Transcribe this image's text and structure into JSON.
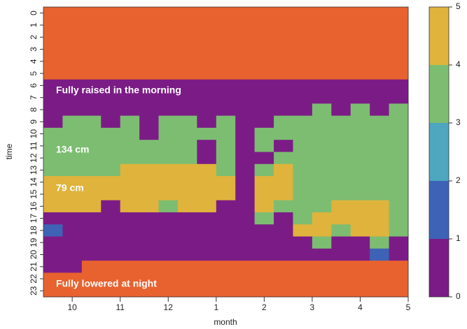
{
  "chart_data": {
    "type": "heatmap",
    "x_label": "month",
    "y_label": "time",
    "x": [
      0.2,
      0.6,
      1.0,
      1.4,
      1.8,
      2.2,
      2.6,
      3.0,
      3.4,
      3.8,
      4.2,
      4.6,
      5.0,
      5.4,
      5.8,
      6.2,
      6.6,
      7.0,
      7.4
    ],
    "xlim": [
      0,
      7.6
    ],
    "xticks": [
      {
        "value": 0.6,
        "label": "10"
      },
      {
        "value": 1.6,
        "label": "11"
      },
      {
        "value": 2.6,
        "label": "12"
      },
      {
        "value": 3.6,
        "label": "1"
      },
      {
        "value": 4.6,
        "label": "2"
      },
      {
        "value": 5.6,
        "label": "3"
      },
      {
        "value": 6.6,
        "label": "4"
      },
      {
        "value": 7.6,
        "label": "5"
      }
    ],
    "y": [
      0,
      1,
      2,
      3,
      4,
      5,
      6,
      7,
      8,
      9,
      10,
      11,
      12,
      13,
      14,
      15,
      16,
      17,
      18,
      19,
      20,
      21,
      22,
      23
    ],
    "ylim": [
      -0.5,
      23.5
    ],
    "yticks": [
      0,
      1,
      2,
      3,
      4,
      5,
      6,
      7,
      8,
      9,
      10,
      11,
      12,
      13,
      14,
      15,
      16,
      17,
      18,
      19,
      20,
      21,
      22,
      23
    ],
    "z": [
      [
        5,
        5,
        5,
        5,
        5,
        5,
        5,
        5,
        5,
        5,
        5,
        5,
        5,
        5,
        5,
        5,
        5,
        5,
        5
      ],
      [
        5,
        5,
        5,
        5,
        5,
        5,
        5,
        5,
        5,
        5,
        5,
        5,
        5,
        5,
        5,
        5,
        5,
        5,
        5
      ],
      [
        5,
        5,
        5,
        5,
        5,
        5,
        5,
        5,
        5,
        5,
        5,
        5,
        5,
        5,
        5,
        5,
        5,
        5,
        5
      ],
      [
        5,
        5,
        5,
        5,
        5,
        5,
        5,
        5,
        5,
        5,
        5,
        5,
        5,
        5,
        5,
        5,
        5,
        5,
        5
      ],
      [
        5,
        5,
        5,
        5,
        5,
        5,
        5,
        5,
        5,
        5,
        5,
        5,
        5,
        5,
        5,
        5,
        5,
        5,
        5
      ],
      [
        5,
        5,
        5,
        5,
        5,
        5,
        5,
        5,
        5,
        5,
        5,
        5,
        5,
        5,
        5,
        5,
        5,
        5,
        5
      ],
      [
        0,
        0,
        0,
        0,
        0,
        0,
        0,
        0,
        0,
        0,
        0,
        0,
        0,
        0,
        0,
        0,
        0,
        0,
        0
      ],
      [
        0,
        0,
        0,
        0,
        0,
        0,
        0,
        0,
        0,
        0,
        0,
        0,
        0,
        0,
        0,
        0,
        0,
        0,
        0
      ],
      [
        0,
        0,
        0,
        0,
        0,
        0,
        0,
        0,
        0,
        0,
        0,
        0,
        0,
        0,
        3,
        0,
        3,
        0,
        3
      ],
      [
        0,
        3,
        3,
        0,
        3,
        0,
        3,
        3,
        0,
        3,
        0,
        0,
        3,
        3,
        3,
        3,
        3,
        3,
        3
      ],
      [
        3,
        3,
        3,
        3,
        3,
        0,
        3,
        3,
        3,
        3,
        0,
        3,
        3,
        3,
        3,
        3,
        3,
        3,
        3
      ],
      [
        3,
        3,
        3,
        3,
        3,
        3,
        3,
        3,
        0,
        3,
        0,
        3,
        0,
        3,
        3,
        3,
        3,
        3,
        3
      ],
      [
        3,
        3,
        3,
        3,
        3,
        3,
        3,
        3,
        0,
        3,
        0,
        0,
        3,
        3,
        3,
        3,
        3,
        3,
        3
      ],
      [
        3,
        3,
        3,
        3,
        4,
        4,
        4,
        4,
        4,
        3,
        0,
        3,
        4,
        3,
        3,
        3,
        3,
        3,
        3
      ],
      [
        4,
        4,
        4,
        4,
        4,
        4,
        4,
        4,
        4,
        4,
        0,
        4,
        4,
        3,
        3,
        3,
        3,
        3,
        3
      ],
      [
        4,
        4,
        4,
        4,
        4,
        4,
        4,
        4,
        4,
        4,
        0,
        4,
        4,
        3,
        3,
        3,
        3,
        3,
        3
      ],
      [
        4,
        4,
        4,
        0,
        4,
        4,
        3,
        4,
        4,
        0,
        0,
        4,
        3,
        3,
        3,
        4,
        4,
        4,
        3
      ],
      [
        0,
        0,
        0,
        0,
        0,
        0,
        0,
        0,
        0,
        0,
        0,
        3,
        0,
        3,
        4,
        4,
        4,
        4,
        3
      ],
      [
        1,
        0,
        0,
        0,
        0,
        0,
        0,
        0,
        0,
        0,
        0,
        0,
        0,
        4,
        4,
        3,
        4,
        4,
        3
      ],
      [
        0,
        0,
        0,
        0,
        0,
        0,
        0,
        0,
        0,
        0,
        0,
        0,
        0,
        0,
        3,
        0,
        0,
        3,
        0
      ],
      [
        0,
        0,
        0,
        0,
        0,
        0,
        0,
        0,
        0,
        0,
        0,
        0,
        0,
        0,
        0,
        0,
        0,
        1,
        0
      ],
      [
        0,
        0,
        5,
        5,
        5,
        5,
        5,
        5,
        5,
        5,
        5,
        5,
        5,
        5,
        5,
        5,
        5,
        5,
        5
      ],
      [
        5,
        5,
        5,
        5,
        5,
        5,
        5,
        5,
        5,
        5,
        5,
        5,
        5,
        5,
        5,
        5,
        5,
        5,
        5
      ],
      [
        5,
        5,
        5,
        5,
        5,
        5,
        5,
        5,
        5,
        5,
        5,
        5,
        5,
        5,
        5,
        5,
        5,
        5,
        5
      ]
    ],
    "colors": [
      "#7b1c86",
      "#3e63b6",
      "#4ea6bf",
      "#7dbd71",
      "#e0b33c",
      "#e8622f"
    ],
    "zlim": [
      0,
      5
    ],
    "zticks": [
      0,
      1,
      2,
      3,
      4,
      5
    ],
    "annotations": [
      "Fully raised in the morning",
      "134 cm",
      "79 cm",
      "Fully lowered at night"
    ]
  }
}
